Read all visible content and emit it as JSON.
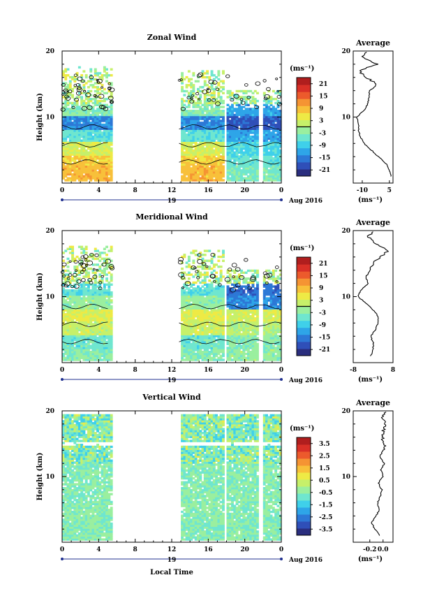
{
  "date_label": "Aug 2016",
  "day_label": "19",
  "xlabel": "Local Time",
  "ylabel": "Height (km)",
  "unit_label": "(ms⁻¹)",
  "avg_title": "Average",
  "chart_data": [
    {
      "type": "heatmap",
      "title": "Zonal Wind",
      "x_range": [
        0,
        24
      ],
      "x_ticks": [
        "0",
        "4",
        "8",
        "12",
        "16",
        "20",
        "0"
      ],
      "y_range": [
        0,
        20
      ],
      "y_ticks": [
        "10",
        "20"
      ],
      "colorbar": {
        "range": [
          -24,
          24
        ],
        "ticks": [
          "21",
          "15",
          "9",
          "3",
          "-3",
          "-9",
          "-15",
          "-21"
        ],
        "zero_line": 0
      },
      "data_gaps_hours": [
        [
          5.5,
          12.8
        ],
        [
          17.6,
          18.0
        ],
        [
          21.5,
          21.9
        ]
      ],
      "profile_bands": [
        {
          "from": 0,
          "to": 2.5,
          "day_value": 9,
          "night_value": -4
        },
        {
          "from": 2.5,
          "to": 4,
          "day_value": 7,
          "night_value": -6
        },
        {
          "from": 4,
          "to": 6,
          "day_value": 3,
          "night_value": -8
        },
        {
          "from": 6,
          "to": 8,
          "day_value": -6,
          "night_value": -12
        },
        {
          "from": 8,
          "to": 10,
          "day_value": -14,
          "night_value": -18
        },
        {
          "from": 10,
          "to": 12,
          "day_value": -3,
          "night_value": -12
        },
        {
          "from": 12,
          "to": 17,
          "day_value": 0,
          "night_value": -2
        }
      ],
      "average_profile": {
        "xlim": [
          -15,
          7
        ],
        "x_ticks": [
          "-10",
          "5"
        ],
        "height_km": [
          1,
          2,
          3,
          4,
          5,
          6,
          7,
          8,
          9,
          10,
          11,
          12,
          13,
          14,
          15,
          16,
          17,
          18,
          19,
          20
        ],
        "values": [
          6,
          5,
          3,
          -1,
          -5,
          -9,
          -11,
          -12,
          -12,
          -13,
          -9,
          -7,
          -6,
          -6,
          -2,
          -8,
          -12,
          -2,
          -10,
          -8
        ]
      }
    },
    {
      "type": "heatmap",
      "title": "Meridional Wind",
      "x_range": [
        0,
        24
      ],
      "x_ticks": [
        "0",
        "4",
        "8",
        "12",
        "16",
        "20",
        "0"
      ],
      "y_range": [
        0,
        20
      ],
      "y_ticks": [
        "10",
        "20"
      ],
      "colorbar": {
        "range": [
          -24,
          24
        ],
        "ticks": [
          "21",
          "15",
          "9",
          "3",
          "-3",
          "-9",
          "-15",
          "-21"
        ],
        "zero_line": 0
      },
      "data_gaps_hours": [
        [
          5.5,
          12.8
        ],
        [
          17.6,
          18.0
        ],
        [
          21.5,
          21.9
        ]
      ],
      "profile_bands": [
        {
          "from": 0,
          "to": 2,
          "day_value": -3,
          "night_value": -2
        },
        {
          "from": 2,
          "to": 4,
          "day_value": -5,
          "night_value": -3
        },
        {
          "from": 4,
          "to": 6,
          "day_value": 2,
          "night_value": 1
        },
        {
          "from": 6,
          "to": 8,
          "day_value": 4,
          "night_value": 3
        },
        {
          "from": 8,
          "to": 10,
          "day_value": -2,
          "night_value": -14
        },
        {
          "from": 10,
          "to": 12,
          "day_value": -6,
          "night_value": -16
        },
        {
          "from": 12,
          "to": 17,
          "day_value": 0,
          "night_value": 0
        }
      ],
      "average_profile": {
        "xlim": [
          -8,
          8
        ],
        "x_ticks": [
          "-8",
          "8"
        ],
        "height_km": [
          1,
          2,
          3,
          4,
          5,
          6,
          7,
          8,
          9,
          10,
          11,
          12,
          13,
          14,
          15,
          16,
          17,
          18,
          19,
          20
        ],
        "values": [
          -1,
          0,
          0,
          -1,
          1,
          2,
          2,
          0,
          -3,
          -6,
          -5,
          -2,
          -3,
          -1,
          0,
          3,
          6,
          1,
          -2,
          0
        ]
      }
    },
    {
      "type": "heatmap",
      "title": "Vertical Wind",
      "x_range": [
        0,
        24
      ],
      "x_ticks": [
        "0",
        "4",
        "8",
        "12",
        "16",
        "20",
        "0"
      ],
      "y_range": [
        0,
        20
      ],
      "y_ticks": [
        "10",
        "20"
      ],
      "colorbar": {
        "range": [
          -4,
          4
        ],
        "ticks": [
          "3.5",
          "2.5",
          "1.5",
          "0.5",
          "-0.5",
          "-1.5",
          "-2.5",
          "-3.5"
        ],
        "zero_line": null
      },
      "data_gaps_hours": [
        [
          5.5,
          12.8
        ],
        [
          17.6,
          18.0
        ],
        [
          21.5,
          21.9
        ]
      ],
      "profile_bands": [
        {
          "from": 0,
          "to": 20,
          "day_value": -0.5,
          "night_value": -0.5
        }
      ],
      "average_profile": {
        "xlim": [
          -0.45,
          0.15
        ],
        "x_ticks": [
          "-0.2",
          "0.0"
        ],
        "height_km": [
          1,
          2,
          3,
          4,
          5,
          6,
          7,
          8,
          9,
          10,
          11,
          12,
          13,
          14,
          15,
          16,
          17,
          18,
          19,
          20
        ],
        "values": [
          -0.05,
          -0.12,
          -0.18,
          -0.1,
          -0.06,
          -0.08,
          -0.04,
          -0.02,
          -0.07,
          0.0,
          -0.03,
          0.02,
          -0.05,
          0.0,
          0.03,
          -0.02,
          0.01,
          0.04,
          0.0,
          0.05
        ]
      }
    }
  ]
}
